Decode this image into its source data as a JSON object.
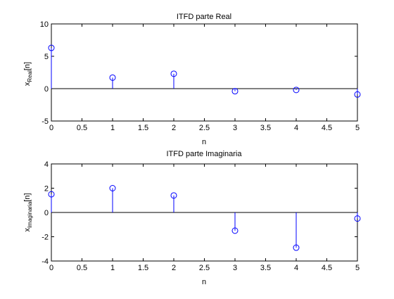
{
  "chart_data": [
    {
      "type": "stem",
      "title": "ITFD parte Real",
      "xlabel": "n",
      "ylabel": {
        "base": "x",
        "sub": "Real",
        "suffix": "[n]"
      },
      "xlim": [
        0,
        5
      ],
      "ylim": [
        -5,
        10
      ],
      "xticks": [
        "0",
        "0.5",
        "1",
        "1.5",
        "2",
        "2.5",
        "3",
        "3.5",
        "4",
        "4.5",
        "5"
      ],
      "yticks": [
        "-5",
        "0",
        "5",
        "10"
      ],
      "grid": false,
      "x": [
        0,
        1,
        2,
        3,
        4,
        5
      ],
      "values": [
        6.3,
        1.7,
        2.3,
        -0.4,
        -0.2,
        -0.9
      ]
    },
    {
      "type": "stem",
      "title": "ITFD parte Imaginaria",
      "xlabel": "n",
      "ylabel": {
        "base": "x",
        "sub": "Imaginaria",
        "suffix": "[n]"
      },
      "xlim": [
        0,
        5
      ],
      "ylim": [
        -4,
        4
      ],
      "xticks": [
        "0",
        "0.5",
        "1",
        "1.5",
        "2",
        "2.5",
        "3",
        "3.5",
        "4",
        "4.5",
        "5"
      ],
      "yticks": [
        "-4",
        "-2",
        "0",
        "2",
        "4"
      ],
      "grid": false,
      "x": [
        0,
        1,
        2,
        3,
        4,
        5
      ],
      "values": [
        1.5,
        2.0,
        1.4,
        -1.5,
        -2.9,
        -0.5
      ]
    }
  ],
  "colors": {
    "stem": "#0000ff",
    "axis": "#000000",
    "baseline": "#000000"
  }
}
